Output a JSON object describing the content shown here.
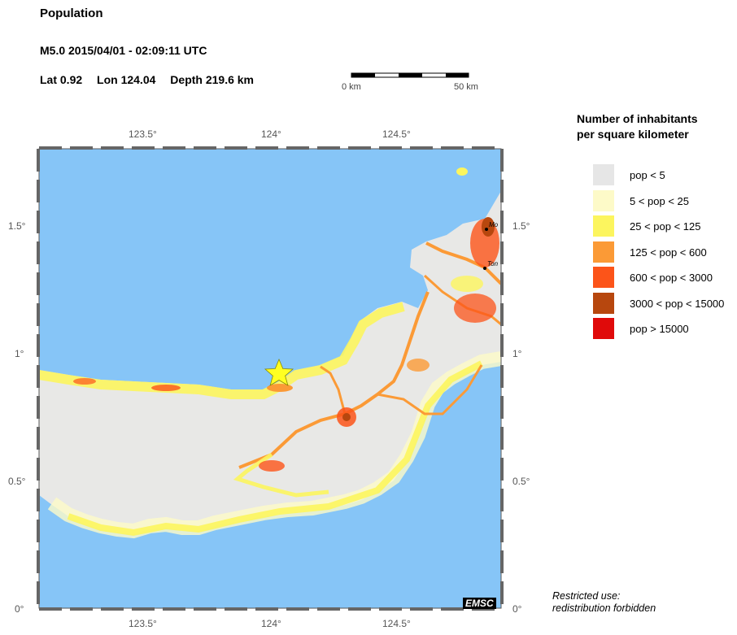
{
  "header": {
    "title": "Population",
    "event": "M5.0  2015/04/01 - 02:09:11 UTC",
    "lat": "Lat  0.92",
    "lon": "Lon 124.04",
    "depth": "Depth 219.6 km"
  },
  "scale_bar": {
    "start_label": "0 km",
    "end_label": "50 km"
  },
  "map": {
    "x_ticks": [
      "123.5°",
      "124°",
      "124.5°"
    ],
    "y_ticks": [
      "1.5°",
      "1°",
      "0.5°",
      "0°"
    ],
    "cities": [
      "Mo",
      "Ton"
    ],
    "epicenter": {
      "lat": 0.92,
      "lon": 124.04
    },
    "sea_color": "#86c5f7"
  },
  "legend": {
    "title_line1": "Number of inhabitants",
    "title_line2": "per square kilometer",
    "items": [
      {
        "label": "pop < 5",
        "color": "#e6e6e6"
      },
      {
        "label": "5 < pop < 25",
        "color": "#fdfac8"
      },
      {
        "label": "25 < pop < 125",
        "color": "#fcf55e"
      },
      {
        "label": "125 < pop < 600",
        "color": "#fb9a36"
      },
      {
        "label": "600 < pop < 3000",
        "color": "#fc5419"
      },
      {
        "label": "3000 < pop < 15000",
        "color": "#b7470e"
      },
      {
        "label": "pop > 15000",
        "color": "#e00a0a"
      }
    ]
  },
  "notice": {
    "line1": "Restricted use:",
    "line2": "redistribution forbidden"
  },
  "logo": "EMSC"
}
